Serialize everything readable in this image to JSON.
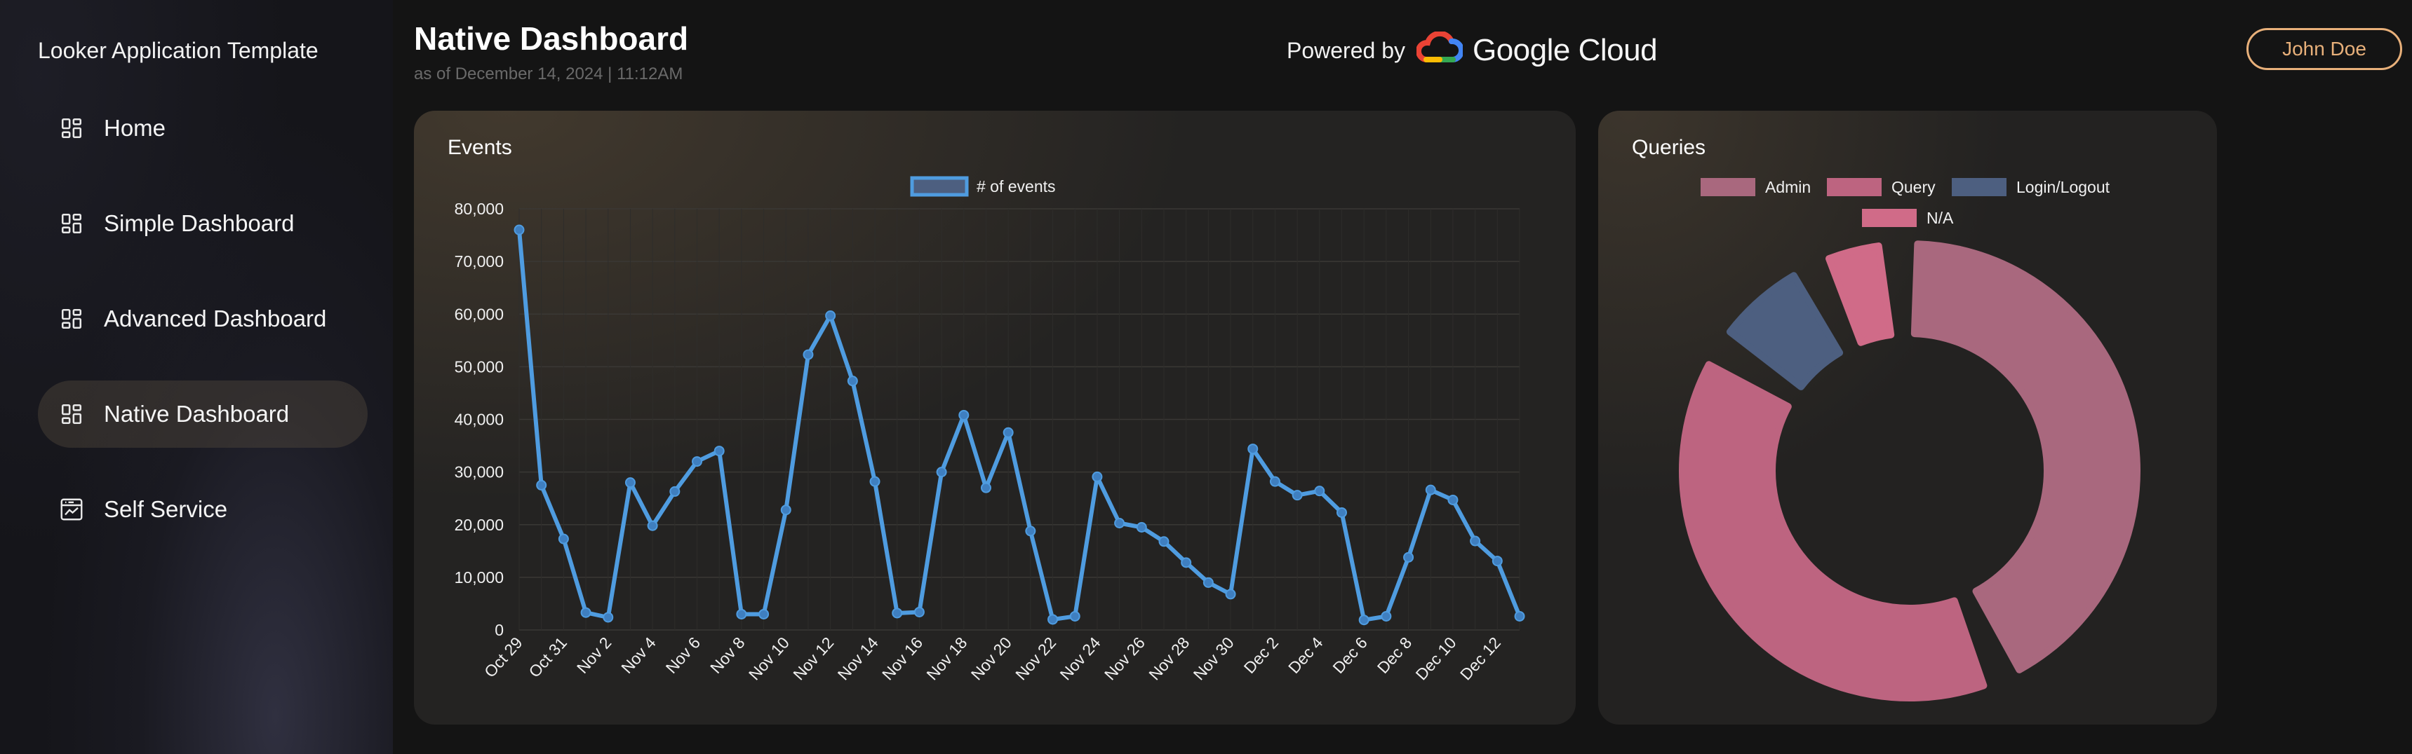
{
  "app": {
    "title": "Looker Application Template"
  },
  "sidebar": {
    "items": [
      {
        "label": "Home",
        "icon": "dashboard-icon",
        "active": false
      },
      {
        "label": "Simple Dashboard",
        "icon": "dashboard-icon",
        "active": false
      },
      {
        "label": "Advanced Dashboard",
        "icon": "dashboard-icon",
        "active": false
      },
      {
        "label": "Native Dashboard",
        "icon": "dashboard-icon",
        "active": true
      },
      {
        "label": "Self Service",
        "icon": "analytics-icon",
        "active": false
      }
    ]
  },
  "header": {
    "title": "Native Dashboard",
    "subtitle": "as of December 14, 2024 | 11:12AM",
    "powered_by": "Powered by",
    "brand": "Google Cloud",
    "user": "John Doe"
  },
  "colors": {
    "accent": "#e8b07a",
    "line": "#4f9ce0",
    "admin": "#a9687e",
    "query": "#bd6480",
    "login": "#4d5f80",
    "na": "#d06b88"
  },
  "events_card": {
    "title": "Events"
  },
  "queries_card": {
    "title": "Queries"
  },
  "chart_data": [
    {
      "type": "line",
      "title": "Events",
      "legend": [
        "# of events"
      ],
      "legend_position": "top-center",
      "grid": true,
      "ylim": [
        0,
        80000
      ],
      "y_ticks": [
        "0",
        "10,000",
        "20,000",
        "30,000",
        "40,000",
        "50,000",
        "60,000",
        "70,000",
        "80,000"
      ],
      "x": [
        "Oct 29",
        "Oct 30",
        "Oct 31",
        "Nov 1",
        "Nov 2",
        "Nov 3",
        "Nov 4",
        "Nov 5",
        "Nov 6",
        "Nov 7",
        "Nov 8",
        "Nov 9",
        "Nov 10",
        "Nov 11",
        "Nov 12",
        "Nov 13",
        "Nov 14",
        "Nov 15",
        "Nov 16",
        "Nov 17",
        "Nov 18",
        "Nov 19",
        "Nov 20",
        "Nov 21",
        "Nov 22",
        "Nov 23",
        "Nov 24",
        "Nov 25",
        "Nov 26",
        "Nov 27",
        "Nov 28",
        "Nov 29",
        "Nov 30",
        "Dec 1",
        "Dec 2",
        "Dec 3",
        "Dec 4",
        "Dec 5",
        "Dec 6",
        "Dec 7",
        "Dec 8",
        "Dec 9",
        "Dec 10",
        "Dec 11",
        "Dec 12",
        "Dec 13"
      ],
      "x_tick_labels": [
        "Oct 29",
        "Oct 31",
        "Nov 2",
        "Nov 4",
        "Nov 6",
        "Nov 8",
        "Nov 10",
        "Nov 12",
        "Nov 14",
        "Nov 16",
        "Nov 18",
        "Nov 20",
        "Nov 22",
        "Nov 24",
        "Nov 26",
        "Nov 28",
        "Nov 30",
        "Dec 2",
        "Dec 4",
        "Dec 6",
        "Dec 8",
        "Dec 10",
        "Dec 12"
      ],
      "series": [
        {
          "name": "# of events",
          "values": [
            76000,
            27500,
            17300,
            3300,
            2400,
            28000,
            19800,
            26300,
            32000,
            34000,
            3000,
            3000,
            22800,
            52300,
            59700,
            47300,
            28200,
            3200,
            3400,
            30000,
            40800,
            27000,
            37500,
            18800,
            2000,
            2600,
            29100,
            20300,
            19500,
            16800,
            12800,
            9000,
            6800,
            34400,
            28200,
            25600,
            26400,
            22300,
            1900,
            2600,
            13800,
            26600,
            24700,
            16900,
            13100,
            2600
          ]
        }
      ]
    },
    {
      "type": "pie",
      "title": "Queries",
      "legend": [
        "Admin",
        "Query",
        "Login/Logout",
        "N/A"
      ],
      "legend_position": "top",
      "categories": [
        "Admin",
        "Query",
        "Login/Logout",
        "N/A"
      ],
      "values": [
        42.5,
        39.1,
        7.1,
        4.7
      ]
    }
  ]
}
